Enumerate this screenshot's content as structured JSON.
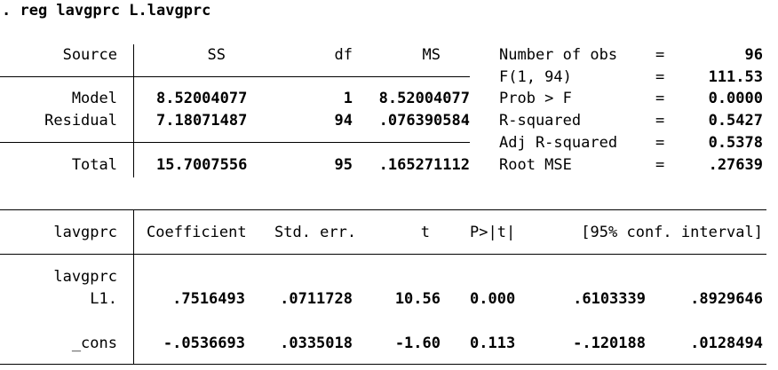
{
  "command": ". reg lavgprc L.lavgprc",
  "anova": {
    "headers": {
      "source": "Source",
      "ss": "SS",
      "df": "df",
      "ms": "MS"
    },
    "rows": [
      {
        "source": "Model",
        "ss": "8.52004077",
        "df": "1",
        "ms": "8.52004077"
      },
      {
        "source": "Residual",
        "ss": "7.18071487",
        "df": "94",
        "ms": ".076390584"
      },
      {
        "source": "Total",
        "ss": "15.7007556",
        "df": "95",
        "ms": ".165271112"
      }
    ]
  },
  "stats": [
    {
      "label": "Number of obs",
      "eq": "=",
      "value": "96"
    },
    {
      "label": "F(1, 94)",
      "eq": "=",
      "value": "111.53"
    },
    {
      "label": "Prob > F",
      "eq": "=",
      "value": "0.0000"
    },
    {
      "label": "R-squared",
      "eq": "=",
      "value": "0.5427"
    },
    {
      "label": "Adj R-squared",
      "eq": "=",
      "value": "0.5378"
    },
    {
      "label": "Root MSE",
      "eq": "=",
      "value": ".27639"
    }
  ],
  "coef_table": {
    "headers": {
      "depvar": "lavgprc",
      "coef": "Coefficient",
      "se": "Std. err.",
      "t": "t",
      "p": "P>|t|",
      "ci": "[95% conf. interval]"
    },
    "group_label": "lavgprc",
    "rows": [
      {
        "name": "L1.",
        "coef": ".7516493",
        "se": ".0711728",
        "t": "10.56",
        "p": "0.000",
        "ci_low": ".6103339",
        "ci_high": ".8929646"
      },
      {
        "name": "_cons",
        "coef": "-.0536693",
        "se": ".0335018",
        "t": "-1.60",
        "p": "0.113",
        "ci_low": "-.120188",
        "ci_high": ".0128494"
      }
    ]
  }
}
